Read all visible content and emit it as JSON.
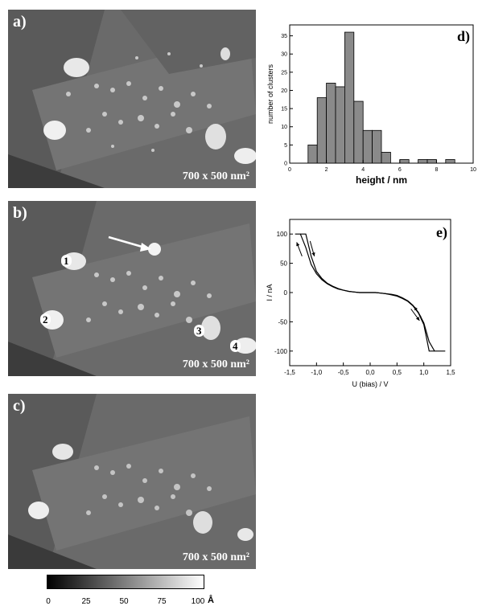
{
  "panels": {
    "a": {
      "label": "a)",
      "scale": "700 x 500 nm²"
    },
    "b": {
      "label": "b)",
      "scale": "700 x 500 nm²",
      "markers": [
        "1",
        "2",
        "3",
        "4"
      ]
    },
    "c": {
      "label": "c)",
      "scale": "700 x 500 nm²"
    }
  },
  "colorbar": {
    "ticks": [
      "0",
      "25",
      "50",
      "75",
      "100"
    ],
    "unit": "Å"
  },
  "chart_data": [
    {
      "type": "bar",
      "panel_label": "d)",
      "xlabel": "height / nm",
      "ylabel": "number of clusters",
      "xlim": [
        0,
        10
      ],
      "ylim": [
        0,
        38
      ],
      "xticks": [
        "0",
        "2",
        "4",
        "6",
        "8",
        "10"
      ],
      "yticks": [
        "0",
        "5",
        "10",
        "15",
        "20",
        "25",
        "30",
        "35"
      ],
      "bin_width": 0.5,
      "bin_centers": [
        1.25,
        1.75,
        2.25,
        2.75,
        3.25,
        3.75,
        4.25,
        4.75,
        5.25,
        6.25,
        7.25,
        7.75,
        8.75
      ],
      "values": [
        5,
        18,
        22,
        21,
        36,
        17,
        9,
        9,
        3,
        1,
        1,
        1,
        1
      ],
      "grid": false,
      "bar_color": "#8a8a8a"
    },
    {
      "type": "line",
      "panel_label": "e)",
      "xlabel": "U (bias) / V",
      "ylabel": "I / nA",
      "xlim": [
        -1.5,
        1.5
      ],
      "ylim": [
        -125,
        125
      ],
      "xticks": [
        "-1,5",
        "-1,0",
        "-0,5",
        "0,0",
        "0,5",
        "1,0",
        "1,5"
      ],
      "yticks": [
        "100",
        "50",
        "0",
        "-50",
        "-100"
      ],
      "grid": false,
      "series": [
        {
          "x": [
            -1.4,
            -1.3,
            -1.2,
            -1.1,
            -1.0,
            -0.9,
            -0.8,
            -0.7,
            -0.6,
            -0.5,
            -0.4,
            -0.3,
            -0.2,
            -0.1,
            0.0,
            0.1,
            0.2,
            0.3,
            0.4,
            0.5,
            0.6,
            0.7,
            0.8,
            0.9,
            1.0,
            1.1,
            1.2
          ],
          "y": [
            100,
            100,
            77,
            48,
            32,
            22,
            15,
            10,
            6,
            4,
            2,
            1,
            0,
            0,
            0,
            0,
            -1,
            -2,
            -4,
            -6,
            -10,
            -15,
            -23,
            -35,
            -55,
            -100,
            -100
          ]
        },
        {
          "x": [
            -1.3,
            -1.2,
            -1.1,
            -1.0,
            -0.9,
            -0.8,
            -0.7,
            -0.6,
            -0.5,
            -0.4,
            -0.3,
            -0.2,
            -0.1,
            0.0,
            0.1,
            0.2,
            0.3,
            0.4,
            0.5,
            0.6,
            0.7,
            0.8,
            0.9,
            1.0,
            1.1,
            1.2,
            1.4
          ],
          "y": [
            100,
            100,
            62,
            36,
            24,
            16,
            11,
            7,
            4,
            2,
            1,
            0,
            0,
            0,
            0,
            -1,
            -2,
            -3,
            -5,
            -9,
            -14,
            -22,
            -34,
            -52,
            -84,
            -100,
            -100
          ]
        }
      ]
    }
  ]
}
